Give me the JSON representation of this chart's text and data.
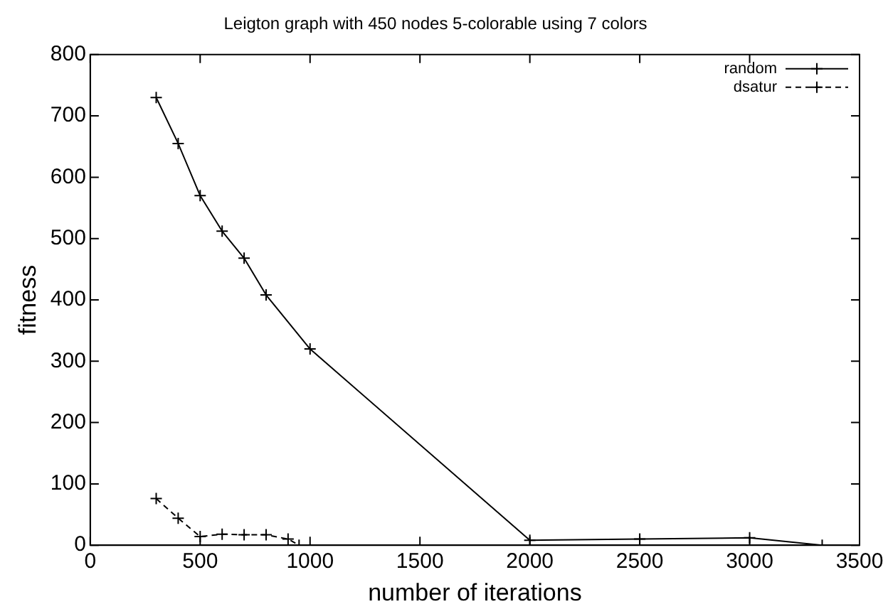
{
  "chart_data": {
    "type": "line",
    "title": "Leigton graph with 450 nodes 5-colorable using 7 colors",
    "xlabel": "number of iterations",
    "ylabel": "fitness",
    "xlim": [
      0,
      3500
    ],
    "xticks": [
      0,
      500,
      1000,
      1500,
      2000,
      2500,
      3000,
      3500
    ],
    "ylim": [
      0,
      800
    ],
    "yticks": [
      0,
      100,
      200,
      300,
      400,
      500,
      600,
      700,
      800
    ],
    "grid": false,
    "legend": "top right",
    "series": [
      {
        "name": "random",
        "color": "#000000",
        "marker": "cross",
        "line_style": "solid",
        "x": [
          300,
          400,
          500,
          600,
          700,
          800,
          1000,
          2000,
          2500,
          3000,
          3330
        ],
        "values": [
          730,
          655,
          570,
          512,
          468,
          408,
          320,
          8,
          10,
          12,
          0
        ]
      },
      {
        "name": "dsatur",
        "color": "#000000",
        "marker": "cross",
        "line_style": "dashed",
        "x": [
          300,
          400,
          500,
          600,
          700,
          800,
          900,
          950
        ],
        "values": [
          76,
          44,
          14,
          18,
          17,
          17,
          10,
          0
        ]
      }
    ]
  }
}
